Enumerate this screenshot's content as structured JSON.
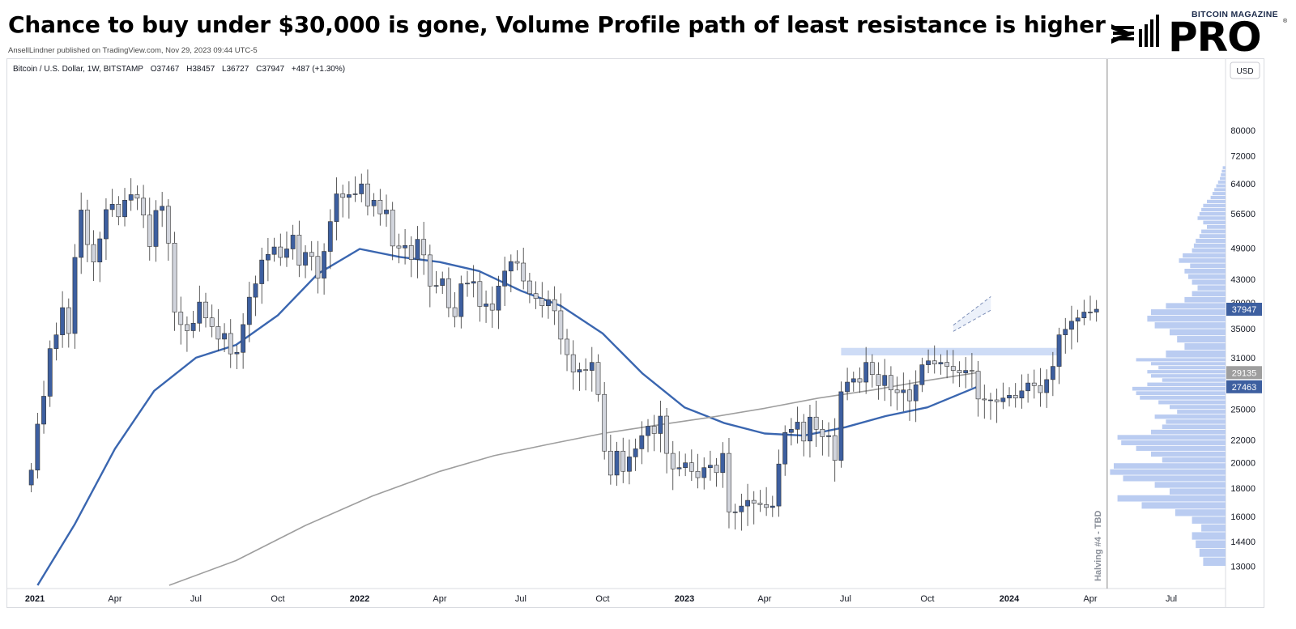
{
  "header": {
    "title": "Chance to buy under $30,000 is gone, Volume Profile path of least resistance is higher",
    "publisher": "AnsellLindner published on TradingView.com, Nov 29, 2023 09:44 UTC-5"
  },
  "brand": {
    "top": "BITCOIN MAGAZINE",
    "pro": "PRO",
    "reg": "®"
  },
  "legend": {
    "symbol": "Bitcoin / U.S. Dollar, 1W, BITSTAMP",
    "open": "O37467",
    "high": "H38457",
    "low": "L36727",
    "close": "C37947",
    "change": "+487 (+1.30%)"
  },
  "colors": {
    "up": "#3d5fa0",
    "down": "#d1d4dc",
    "ma_short": "#3a66b0",
    "ma_long": "#9e9e9e",
    "volume_profile": "#aec3ef"
  },
  "chart_data": {
    "type": "candlestick",
    "symbol": "Bitcoin / U.S. Dollar",
    "timeframe": "1W",
    "exchange": "BITSTAMP",
    "currency_label": "USD",
    "y_scale": "log",
    "ylim": [
      12000,
      100000
    ],
    "xlim": [
      "2020-12-01",
      "2024-08-31"
    ],
    "y_ticks": [
      80000,
      72000,
      64000,
      56500,
      49000,
      43000,
      39000,
      35000,
      31000,
      25000,
      22000,
      20000,
      18000,
      16000,
      14400,
      13000
    ],
    "x_ticks": [
      {
        "date": "2021-01-01",
        "label": "2021",
        "bold": true
      },
      {
        "date": "2021-04-01",
        "label": "Apr"
      },
      {
        "date": "2021-07-01",
        "label": "Jul"
      },
      {
        "date": "2021-10-01",
        "label": "Oct"
      },
      {
        "date": "2022-01-01",
        "label": "2022",
        "bold": true
      },
      {
        "date": "2022-04-01",
        "label": "Apr"
      },
      {
        "date": "2022-07-01",
        "label": "Jul"
      },
      {
        "date": "2022-10-01",
        "label": "Oct"
      },
      {
        "date": "2023-01-01",
        "label": "2023",
        "bold": true
      },
      {
        "date": "2023-04-01",
        "label": "Apr"
      },
      {
        "date": "2023-07-01",
        "label": "Jul"
      },
      {
        "date": "2023-10-01",
        "label": "Oct"
      },
      {
        "date": "2024-01-01",
        "label": "2024",
        "bold": true
      },
      {
        "date": "2024-04-01",
        "label": "Apr"
      },
      {
        "date": "2024-07-01",
        "label": "Jul"
      }
    ],
    "price_badges": [
      {
        "value": 37947,
        "label": "37947",
        "bg": "#3d5fa0",
        "fg": "#ffffff"
      },
      {
        "value": 29135,
        "label": "29135",
        "bg": "#9e9e9e",
        "fg": "#ffffff"
      },
      {
        "value": 27463,
        "label": "27463",
        "bg": "#3d5fa0",
        "fg": "#ffffff"
      }
    ],
    "weekly_closes": [
      19400,
      23500,
      26400,
      32200,
      34100,
      38200,
      34300,
      47100,
      57400,
      49700,
      46200,
      50900,
      57500,
      58800,
      55800,
      59800,
      61200,
      60300,
      56200,
      49300,
      57300,
      58300,
      50000,
      37500,
      35600,
      34700,
      35800,
      39100,
      36600,
      35300,
      33500,
      34300,
      31500,
      31700,
      35600,
      39900,
      42200,
      46600,
      47700,
      49200,
      47100,
      48800,
      51700,
      45600,
      48100,
      47300,
      43200,
      48300,
      54700,
      61400,
      60500,
      61200,
      61400,
      64000,
      58400,
      59800,
      56500,
      57400,
      49400,
      49000,
      49500,
      46700,
      50800,
      47600,
      41800,
      41900,
      43100,
      38200,
      36800,
      42200,
      42300,
      42600,
      38400,
      38800,
      37800,
      41800,
      44500,
      46300,
      46000,
      42700,
      40500,
      39700,
      38500,
      39500,
      37700,
      33500,
      31400,
      29200,
      29500,
      29400,
      30400,
      26600,
      21000,
      19000,
      21000,
      19300,
      20500,
      21200,
      22400,
      23300,
      22600,
      24300,
      20800,
      19500,
      19600,
      20000,
      19300,
      18800,
      19600,
      19800,
      19200,
      20800,
      16300,
      16300,
      16700,
      17100,
      16900,
      16800,
      16600,
      16700,
      19900,
      22700,
      23000,
      23700,
      21900,
      24200,
      23000,
      22300,
      22400,
      20200,
      26900,
      28000,
      28400,
      28000,
      30400,
      28900,
      27600,
      28800,
      27100,
      26800,
      27100,
      25900,
      27700,
      30100,
      30600,
      30200,
      30400,
      29900,
      29400,
      29100,
      29400,
      29300,
      26100,
      26000,
      26000,
      25800,
      26200,
      26500,
      26200,
      27000,
      27900,
      27600,
      26800,
      28300,
      29900,
      34100,
      34900,
      36100,
      36600,
      37500,
      37500,
      37947
    ],
    "first_candle_date": "2020-12-28",
    "moving_averages": [
      {
        "color": "#3a66b0",
        "points": [
          [
            "2021-01-04",
            12000
          ],
          [
            "2021-02-15",
            15500
          ],
          [
            "2021-04-01",
            21200
          ],
          [
            "2021-05-15",
            27000
          ],
          [
            "2021-07-01",
            31000
          ],
          [
            "2021-08-15",
            32700
          ],
          [
            "2021-10-01",
            37000
          ],
          [
            "2021-11-15",
            44000
          ],
          [
            "2022-01-01",
            48800
          ],
          [
            "2022-02-15",
            47200
          ],
          [
            "2022-04-01",
            46200
          ],
          [
            "2022-05-15",
            44500
          ],
          [
            "2022-07-01",
            41000
          ],
          [
            "2022-08-15",
            38500
          ],
          [
            "2022-10-01",
            34300
          ],
          [
            "2022-11-15",
            29000
          ],
          [
            "2023-01-01",
            25200
          ],
          [
            "2023-02-15",
            23600
          ],
          [
            "2023-04-01",
            22600
          ],
          [
            "2023-05-15",
            22400
          ],
          [
            "2023-07-01",
            23200
          ],
          [
            "2023-08-15",
            24300
          ],
          [
            "2023-10-01",
            25200
          ],
          [
            "2023-11-26",
            27463
          ]
        ]
      },
      {
        "color": "#9e9e9e",
        "points": [
          [
            "2021-06-01",
            12000
          ],
          [
            "2021-08-15",
            13300
          ],
          [
            "2021-11-01",
            15400
          ],
          [
            "2022-01-15",
            17400
          ],
          [
            "2022-04-01",
            19300
          ],
          [
            "2022-06-01",
            20600
          ],
          [
            "2022-08-01",
            21600
          ],
          [
            "2022-10-01",
            22600
          ],
          [
            "2022-12-01",
            23400
          ],
          [
            "2023-02-01",
            24200
          ],
          [
            "2023-04-01",
            25100
          ],
          [
            "2023-06-01",
            26200
          ],
          [
            "2023-08-01",
            27100
          ],
          [
            "2023-10-01",
            28200
          ],
          [
            "2023-11-26",
            29135
          ]
        ]
      }
    ],
    "highlight_zone": {
      "x0": "2023-06-26",
      "x1": "2024-01-15",
      "y0": 31300,
      "y1": 32300
    },
    "forecast_channel": {
      "x0": "2023-10-30",
      "x1": "2023-12-04",
      "low0": 34600,
      "high0": 35500,
      "low1": 37800,
      "high1": 40000
    },
    "vertical_marker": {
      "date": "2024-04-20",
      "label": "Halving #4 - TBD"
    },
    "volume_profile": {
      "max_relative": 1.0,
      "bins": [
        [
          13000,
          0.12
        ],
        [
          13500,
          0.14
        ],
        [
          14000,
          0.16
        ],
        [
          14500,
          0.18
        ],
        [
          15000,
          0.13
        ],
        [
          15500,
          0.18
        ],
        [
          16000,
          0.27
        ],
        [
          16500,
          0.45
        ],
        [
          17000,
          0.58
        ],
        [
          17500,
          0.3
        ],
        [
          18000,
          0.38
        ],
        [
          18500,
          0.55
        ],
        [
          19000,
          0.62
        ],
        [
          19500,
          0.6
        ],
        [
          20000,
          0.34
        ],
        [
          20500,
          0.4
        ],
        [
          21000,
          0.48
        ],
        [
          21500,
          0.56
        ],
        [
          22000,
          0.58
        ],
        [
          22500,
          0.4
        ],
        [
          23000,
          0.34
        ],
        [
          23500,
          0.32
        ],
        [
          24000,
          0.38
        ],
        [
          24500,
          0.26
        ],
        [
          25000,
          0.3
        ],
        [
          25500,
          0.36
        ],
        [
          26000,
          0.46
        ],
        [
          26500,
          0.48
        ],
        [
          27000,
          0.5
        ],
        [
          27500,
          0.42
        ],
        [
          28000,
          0.34
        ],
        [
          28500,
          0.4
        ],
        [
          29000,
          0.42
        ],
        [
          29500,
          0.36
        ],
        [
          30000,
          0.4
        ],
        [
          30500,
          0.48
        ],
        [
          31000,
          0.32
        ],
        [
          32000,
          0.22
        ],
        [
          33000,
          0.26
        ],
        [
          34000,
          0.3
        ],
        [
          35000,
          0.38
        ],
        [
          36000,
          0.42
        ],
        [
          37000,
          0.4
        ],
        [
          38000,
          0.32
        ],
        [
          39000,
          0.22
        ],
        [
          40000,
          0.18
        ],
        [
          41000,
          0.15
        ],
        [
          42000,
          0.18
        ],
        [
          43000,
          0.2
        ],
        [
          44000,
          0.22
        ],
        [
          45000,
          0.19
        ],
        [
          46000,
          0.25
        ],
        [
          47000,
          0.23
        ],
        [
          48000,
          0.18
        ],
        [
          49000,
          0.17
        ],
        [
          50000,
          0.16
        ],
        [
          51000,
          0.14
        ],
        [
          52000,
          0.13
        ],
        [
          53000,
          0.1
        ],
        [
          54000,
          0.12
        ],
        [
          55000,
          0.15
        ],
        [
          56000,
          0.14
        ],
        [
          57000,
          0.13
        ],
        [
          58000,
          0.12
        ],
        [
          59000,
          0.1
        ],
        [
          60000,
          0.08
        ],
        [
          61000,
          0.07
        ],
        [
          62000,
          0.06
        ],
        [
          63000,
          0.05
        ],
        [
          64000,
          0.04
        ],
        [
          65000,
          0.03
        ],
        [
          66000,
          0.025
        ],
        [
          67000,
          0.02
        ],
        [
          68000,
          0.015
        ]
      ]
    }
  }
}
